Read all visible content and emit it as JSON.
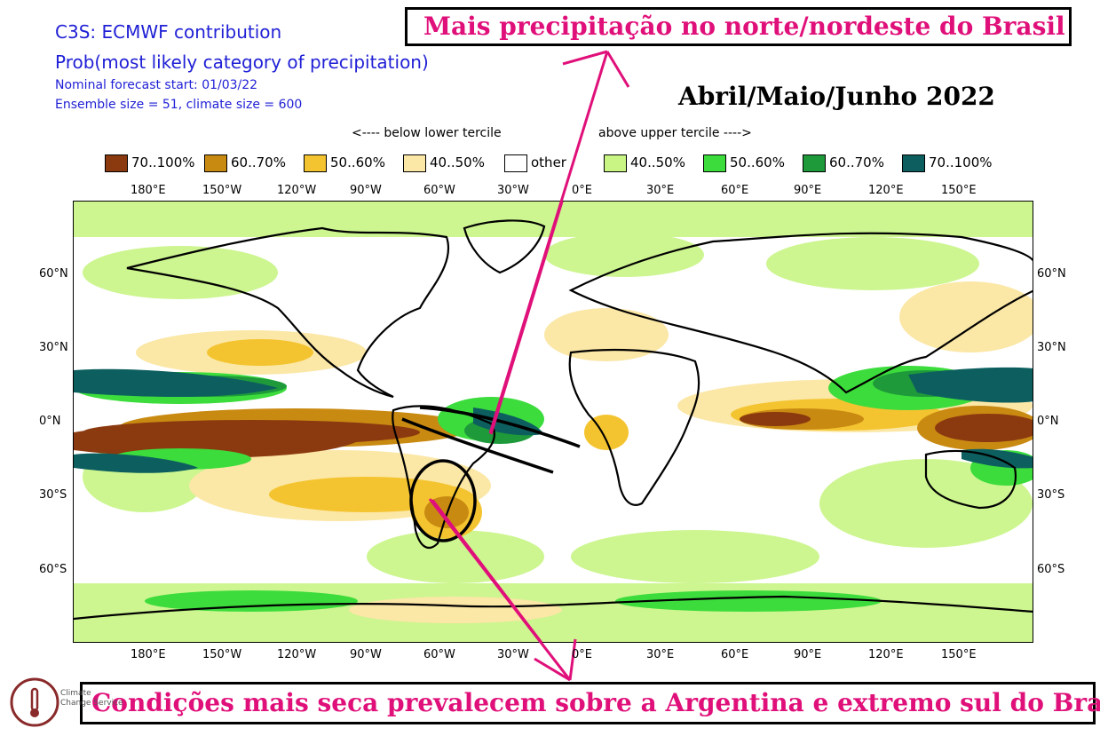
{
  "header": {
    "title": "C3S: ECMWF contribution",
    "subtitle": "Prob(most likely category of precipitation)",
    "forecast_start": "Nominal forecast start: 01/03/22",
    "ensemble": "Ensemble size = 51, climate size = 600"
  },
  "period_label": "Abril/Maio/Junho 2022",
  "annotations": {
    "top": "Mais precipitação no norte/nordeste do Brasil",
    "bottom": "Condições mais seca prevalecem sobre a Argentina e extremo sul do Brasil"
  },
  "legend": {
    "below_note": "<---- below lower tercile",
    "above_note": "above upper tercile ---->",
    "items": [
      {
        "label": "70..100%",
        "color": "#8b3a0f"
      },
      {
        "label": "60..70%",
        "color": "#c98a12"
      },
      {
        "label": "50..60%",
        "color": "#f4c430"
      },
      {
        "label": "40..50%",
        "color": "#fbe7a6"
      },
      {
        "label": "other",
        "color": "#ffffff"
      },
      {
        "label": "40..50%",
        "color": "#c8f584"
      },
      {
        "label": "50..60%",
        "color": "#3cdc3c"
      },
      {
        "label": "60..70%",
        "color": "#1e9a3a"
      },
      {
        "label": "70..100%",
        "color": "#0d5f5f"
      }
    ]
  },
  "axes": {
    "lon_ticks": [
      "180°E",
      "150°W",
      "120°W",
      "90°W",
      "60°W",
      "30°W",
      "0°E",
      "30°E",
      "60°E",
      "90°E",
      "120°E",
      "150°E"
    ],
    "lat_ticks": [
      "60°N",
      "30°N",
      "0°N",
      "30°S",
      "60°S"
    ]
  },
  "logo": {
    "line1": "Climate",
    "line2": "Change Service",
    "icon": "thermometer-cloud-icon"
  }
}
